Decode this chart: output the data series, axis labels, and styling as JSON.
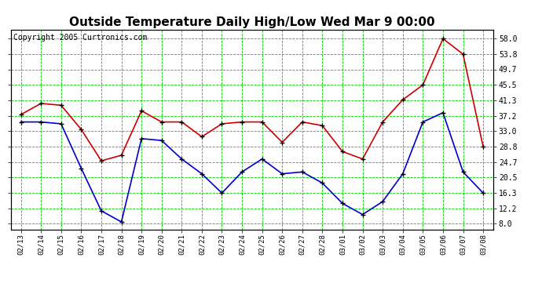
{
  "title": "Outside Temperature Daily High/Low Wed Mar 9 00:00",
  "copyright": "Copyright 2005 Curtronics.com",
  "dates": [
    "02/13",
    "02/14",
    "02/15",
    "02/16",
    "02/17",
    "02/18",
    "02/19",
    "02/20",
    "02/21",
    "02/22",
    "02/23",
    "02/24",
    "02/25",
    "02/26",
    "02/27",
    "02/28",
    "03/01",
    "03/02",
    "03/03",
    "03/04",
    "03/05",
    "03/06",
    "03/07",
    "03/08"
  ],
  "high": [
    37.5,
    40.5,
    40.0,
    33.5,
    25.0,
    26.5,
    38.5,
    35.5,
    35.5,
    31.5,
    35.0,
    35.5,
    35.5,
    30.0,
    35.5,
    34.5,
    27.5,
    25.5,
    35.5,
    41.5,
    45.5,
    58.0,
    53.8,
    28.8
  ],
  "low": [
    35.5,
    35.5,
    35.0,
    23.0,
    11.5,
    8.5,
    31.0,
    30.5,
    25.5,
    21.5,
    16.3,
    22.0,
    25.5,
    21.5,
    22.0,
    19.0,
    13.5,
    10.5,
    14.0,
    21.5,
    35.5,
    38.0,
    22.0,
    16.3
  ],
  "high_color": "#cc0000",
  "low_color": "#0000cc",
  "marker_color": "#000000",
  "grid_color": "#00cc00",
  "bg_color": "#ffffff",
  "yticks": [
    8.0,
    12.2,
    16.3,
    20.5,
    24.7,
    28.8,
    33.0,
    37.2,
    41.3,
    45.5,
    49.7,
    53.8,
    58.0
  ],
  "ymin": 6.5,
  "ymax": 60.5,
  "title_fontsize": 11,
  "copyright_fontsize": 7
}
